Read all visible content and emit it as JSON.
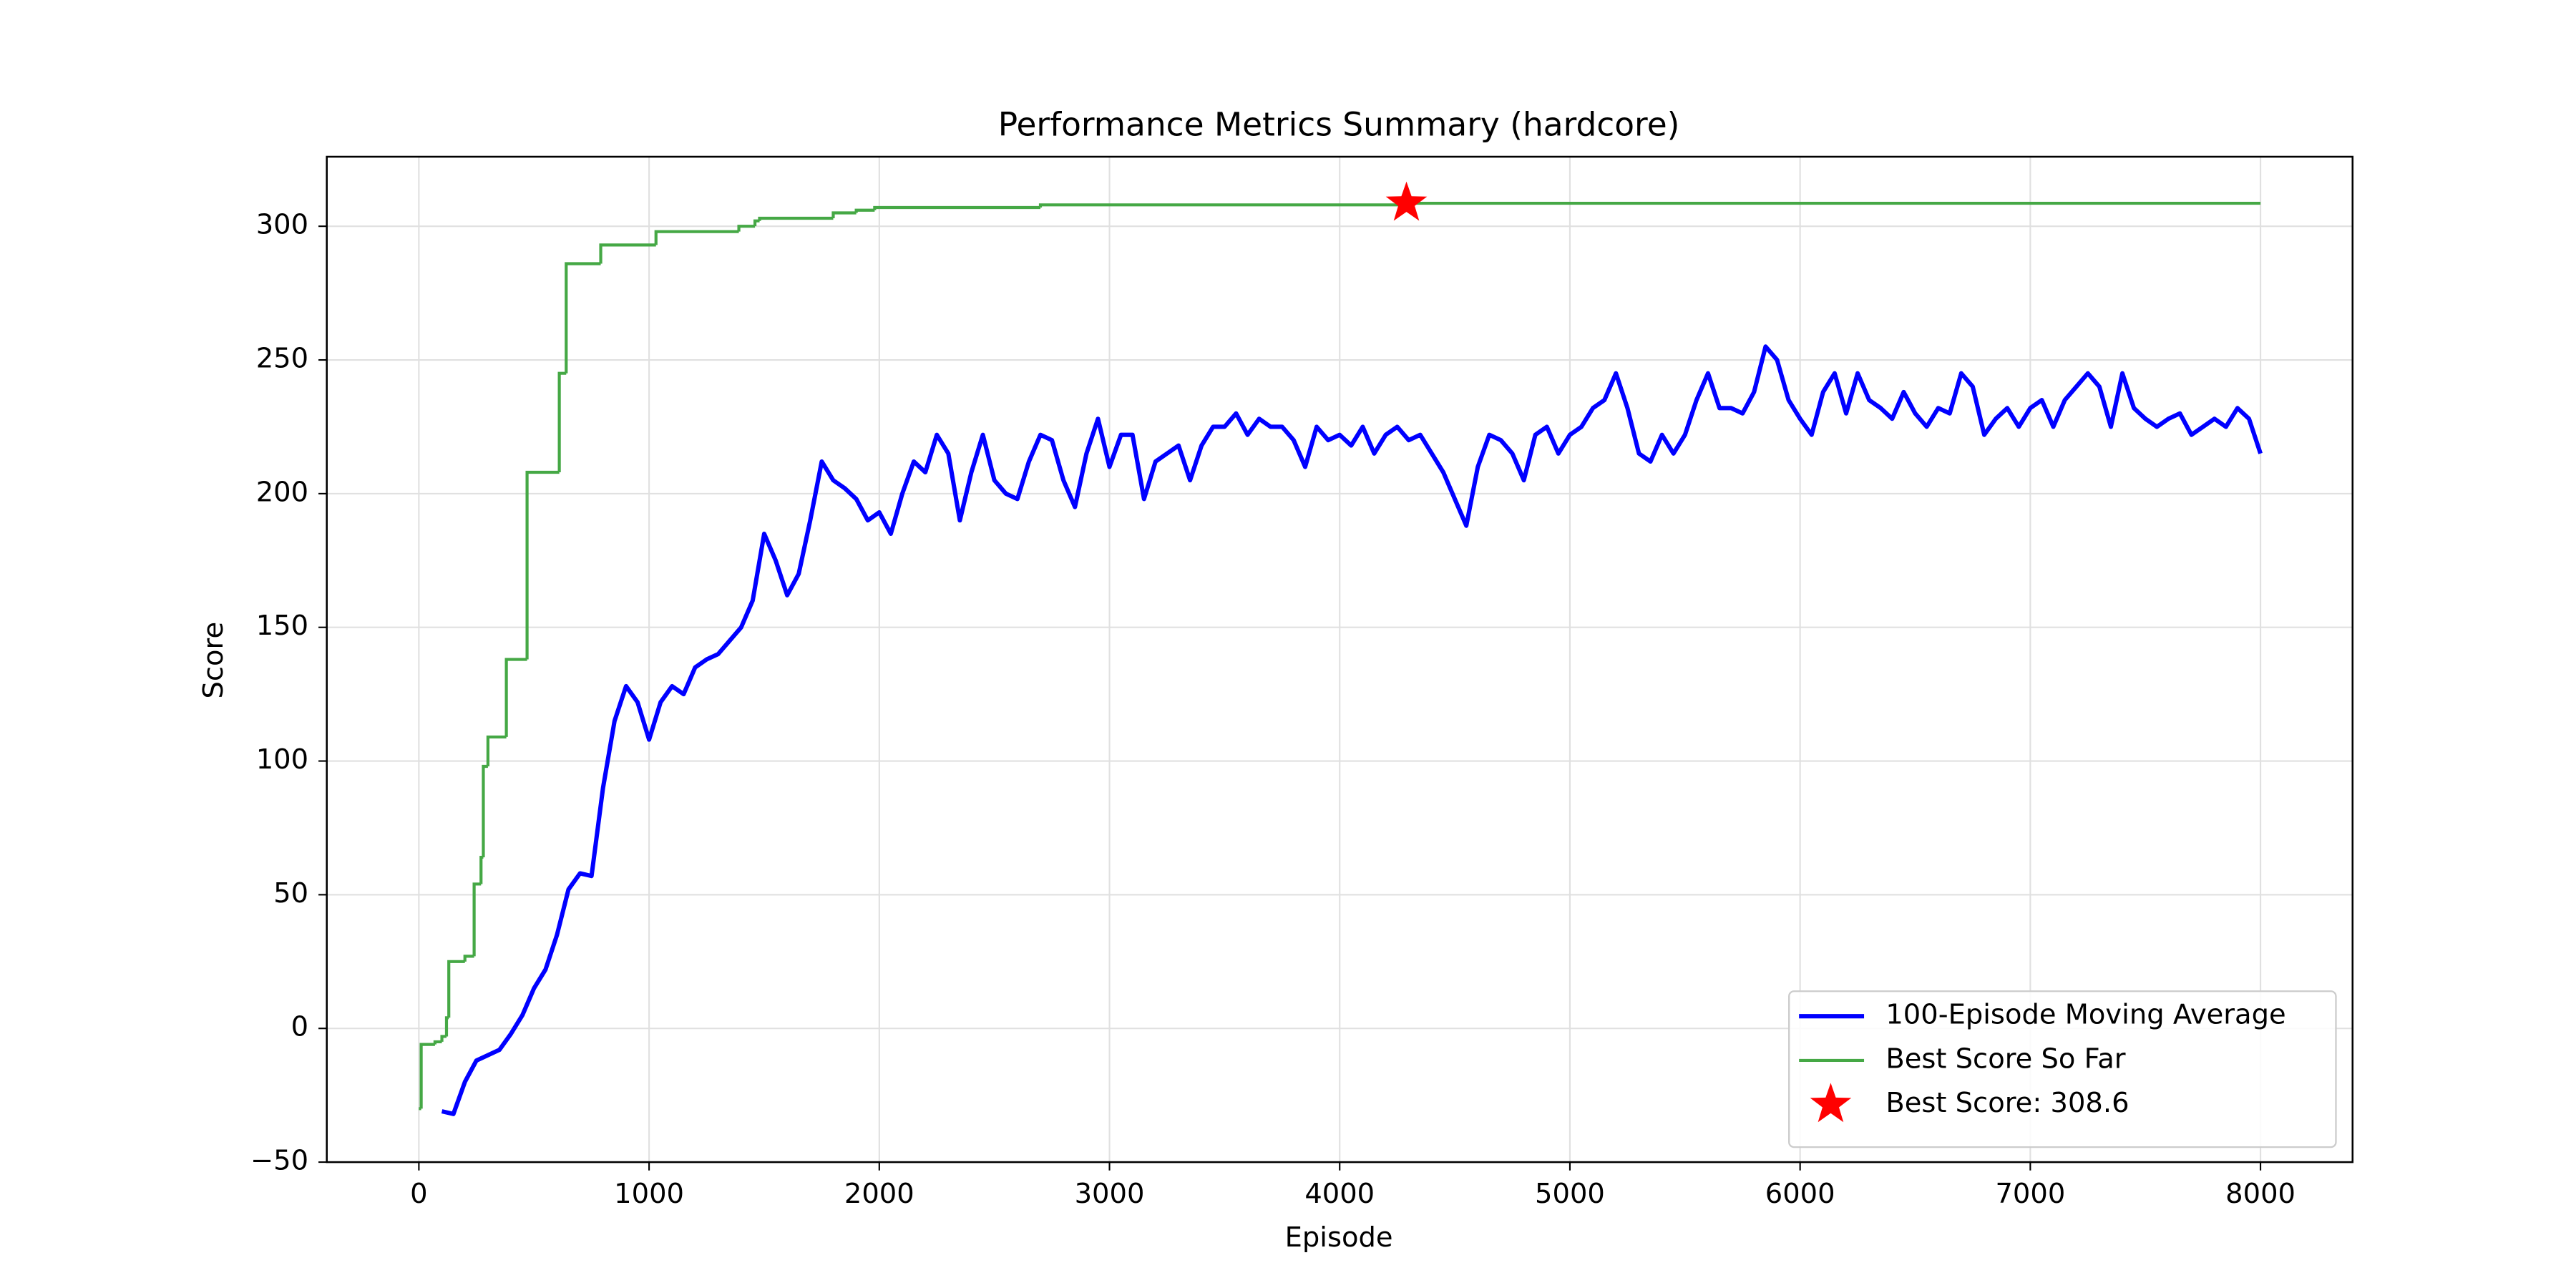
{
  "chart_data": {
    "type": "line",
    "title": "Performance Metrics Summary (hardcore)",
    "xlabel": "Episode",
    "ylabel": "Score",
    "xlim": [
      -400,
      8400
    ],
    "ylim": [
      -50,
      326
    ],
    "xticks": [
      0,
      1000,
      2000,
      3000,
      4000,
      5000,
      6000,
      7000,
      8000
    ],
    "yticks": [
      {
        "value": -50,
        "label": "−50"
      },
      0,
      50,
      100,
      150,
      200,
      250,
      300
    ],
    "grid": true,
    "legend": "lower right",
    "series": [
      {
        "name": "100-Episode Moving Average",
        "color": "#0000ff",
        "style": "line",
        "x": [
          100,
          150,
          200,
          250,
          300,
          350,
          400,
          450,
          500,
          550,
          600,
          650,
          700,
          750,
          800,
          850,
          900,
          950,
          1000,
          1050,
          1100,
          1150,
          1200,
          1250,
          1300,
          1350,
          1400,
          1450,
          1500,
          1550,
          1600,
          1650,
          1700,
          1750,
          1800,
          1850,
          1900,
          1950,
          2000,
          2050,
          2100,
          2150,
          2200,
          2250,
          2300,
          2350,
          2400,
          2450,
          2500,
          2550,
          2600,
          2650,
          2700,
          2750,
          2800,
          2850,
          2900,
          2950,
          3000,
          3050,
          3100,
          3150,
          3200,
          3250,
          3300,
          3350,
          3400,
          3450,
          3500,
          3550,
          3600,
          3650,
          3700,
          3750,
          3800,
          3850,
          3900,
          3950,
          4000,
          4050,
          4100,
          4150,
          4200,
          4250,
          4300,
          4350,
          4400,
          4450,
          4500,
          4550,
          4600,
          4650,
          4700,
          4750,
          4800,
          4850,
          4900,
          4950,
          5000,
          5050,
          5100,
          5150,
          5200,
          5250,
          5300,
          5350,
          5400,
          5450,
          5500,
          5550,
          5600,
          5650,
          5700,
          5750,
          5800,
          5850,
          5900,
          5950,
          6000,
          6050,
          6100,
          6150,
          6200,
          6250,
          6300,
          6350,
          6400,
          6450,
          6500,
          6550,
          6600,
          6650,
          6700,
          6750,
          6800,
          6850,
          6900,
          6950,
          7000,
          7050,
          7100,
          7150,
          7200,
          7250,
          7300,
          7350,
          7400,
          7450,
          7500,
          7550,
          7600,
          7650,
          7700,
          7750,
          7800,
          7850,
          7900,
          7950,
          8000
        ],
        "values": [
          -31,
          -32,
          -20,
          -12,
          -10,
          -8,
          -2,
          5,
          15,
          22,
          35,
          52,
          58,
          57,
          90,
          115,
          128,
          122,
          108,
          122,
          128,
          125,
          135,
          138,
          140,
          145,
          150,
          160,
          185,
          175,
          162,
          170,
          190,
          212,
          205,
          202,
          198,
          190,
          193,
          185,
          200,
          212,
          208,
          222,
          215,
          190,
          208,
          222,
          205,
          200,
          198,
          212,
          222,
          220,
          205,
          195,
          215,
          228,
          210,
          222,
          222,
          198,
          212,
          215,
          218,
          205,
          218,
          225,
          225,
          230,
          222,
          228,
          225,
          225,
          220,
          210,
          225,
          220,
          222,
          218,
          225,
          215,
          222,
          225,
          220,
          222,
          215,
          208,
          198,
          188,
          210,
          222,
          220,
          215,
          205,
          222,
          225,
          215,
          222,
          225,
          232,
          235,
          245,
          232,
          215,
          212,
          222,
          215,
          222,
          235,
          245,
          232,
          232,
          230,
          238,
          255,
          250,
          235,
          228,
          222,
          238,
          245,
          230,
          245,
          235,
          232,
          228,
          238,
          230,
          225,
          232,
          230,
          245,
          240,
          222,
          228,
          232,
          225,
          232,
          235,
          225,
          235,
          240,
          245,
          240,
          225,
          245,
          232,
          228,
          225,
          228,
          230,
          222,
          225,
          228,
          225,
          232,
          228,
          215
        ]
      },
      {
        "name": "Best Score So Far",
        "color": "#45a845",
        "style": "step",
        "x": [
          0,
          10,
          70,
          100,
          120,
          130,
          200,
          240,
          270,
          280,
          300,
          380,
          470,
          610,
          640,
          790,
          1030,
          1390,
          1460,
          1480,
          1800,
          1900,
          1980,
          2700,
          4290,
          8000
        ],
        "values": [
          -30,
          -6,
          -5,
          -3,
          4,
          25,
          27,
          54,
          64,
          98,
          109,
          138,
          208,
          245,
          286,
          293,
          298,
          300,
          302,
          303,
          305,
          306,
          307,
          308,
          308.6,
          308.6
        ]
      },
      {
        "name": "Best Score: 308.6",
        "color": "#ff0000",
        "style": "star",
        "x": [
          4290
        ],
        "values": [
          308.6
        ]
      }
    ]
  }
}
